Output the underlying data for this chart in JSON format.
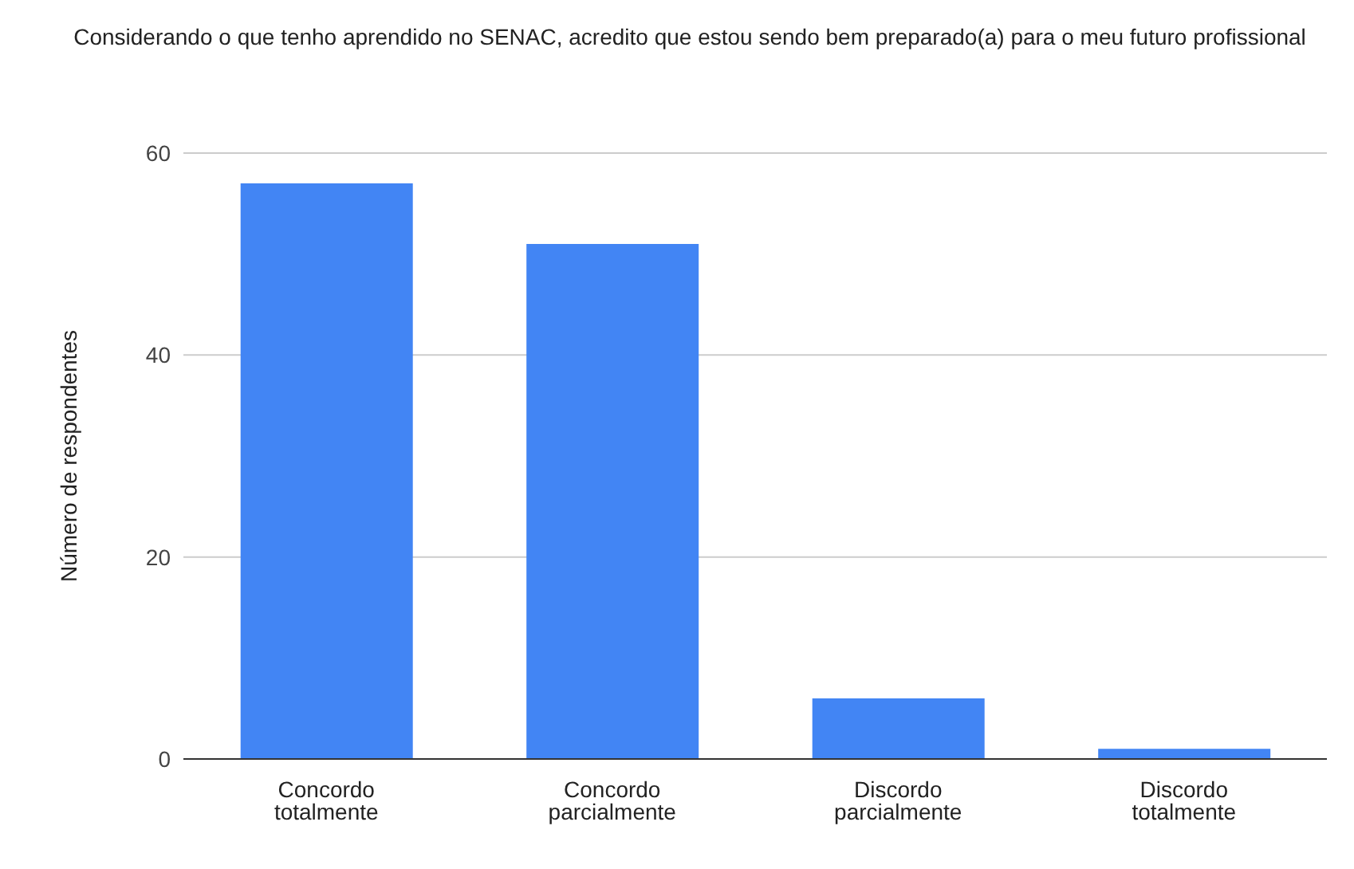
{
  "chart_data": {
    "type": "bar",
    "title": "Considerando o que tenho aprendido no SENAC, acredito que estou sendo bem preparado(a)  para o meu futuro profissional",
    "ylabel": "Número de respondentes",
    "categories": [
      "Concordo totalmente",
      "Concordo parcialmente",
      "Discordo parcialmente",
      "Discordo totalmente"
    ],
    "values": [
      57,
      51,
      6,
      1
    ],
    "color": "#4285f4",
    "ylim": [
      0,
      60
    ],
    "yticks": [
      0,
      20,
      40,
      60
    ],
    "grid": "y"
  }
}
